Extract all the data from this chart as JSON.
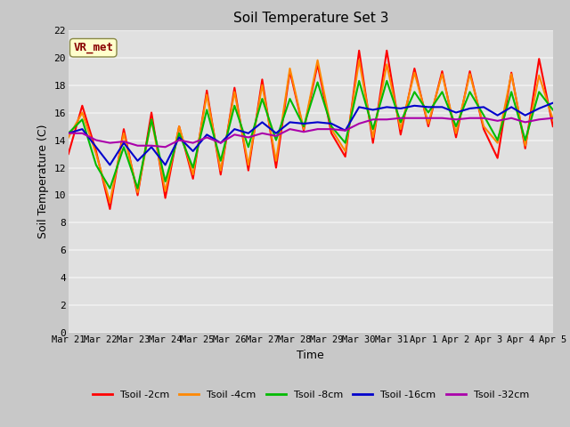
{
  "title": "Soil Temperature Set 3",
  "xlabel": "Time",
  "ylabel": "Soil Temperature (C)",
  "xlim": [
    0,
    15
  ],
  "ylim": [
    0,
    22
  ],
  "yticks": [
    0,
    2,
    4,
    6,
    8,
    10,
    12,
    14,
    16,
    18,
    20,
    22
  ],
  "xtick_labels": [
    "Mar 21",
    "Mar 22",
    "Mar 23",
    "Mar 24",
    "Mar 25",
    "Mar 26",
    "Mar 27",
    "Mar 28",
    "Mar 29",
    "Mar 30",
    "Mar 31",
    "Apr 1",
    "Apr 2",
    "Apr 3",
    "Apr 4",
    "Apr 5"
  ],
  "fig_bg_color": "#c8c8c8",
  "plot_bg_color": "#e0e0e0",
  "grid_color": "#f0f0f0",
  "annotation_text": "VR_met",
  "annotation_box_color": "#ffffcc",
  "annotation_text_color": "#880000",
  "series_names": [
    "Tsoil -2cm",
    "Tsoil -4cm",
    "Tsoil -8cm",
    "Tsoil -16cm",
    "Tsoil -32cm"
  ],
  "series_colors": [
    "#ff0000",
    "#ff8800",
    "#00bb00",
    "#0000cc",
    "#aa00aa"
  ],
  "series_lw": [
    1.5,
    1.5,
    1.5,
    1.5,
    1.5
  ],
  "t2cm": [
    13.0,
    16.5,
    13.2,
    9.0,
    14.8,
    10.0,
    16.0,
    9.8,
    15.0,
    11.2,
    17.6,
    11.5,
    17.8,
    11.8,
    18.4,
    12.0,
    19.0,
    14.7,
    19.5,
    14.5,
    12.8,
    20.5,
    13.8,
    20.5,
    14.4,
    19.2,
    15.0,
    19.0,
    14.2,
    19.0,
    14.8,
    12.7,
    18.9,
    13.4,
    19.9,
    15.0
  ],
  "t4cm": [
    14.2,
    16.0,
    13.0,
    9.5,
    14.5,
    10.2,
    15.5,
    10.3,
    15.0,
    11.5,
    17.3,
    11.8,
    17.5,
    12.2,
    18.0,
    12.5,
    19.2,
    14.8,
    19.8,
    14.8,
    13.2,
    19.8,
    14.2,
    19.5,
    14.8,
    18.9,
    15.2,
    18.8,
    14.5,
    18.8,
    15.0,
    13.8,
    18.8,
    13.6,
    18.7,
    15.5
  ],
  "t8cm": [
    14.5,
    15.5,
    12.2,
    10.5,
    13.5,
    10.5,
    15.5,
    11.0,
    14.5,
    12.0,
    16.2,
    12.5,
    16.5,
    13.5,
    17.0,
    14.0,
    17.0,
    15.0,
    18.2,
    15.0,
    13.8,
    18.3,
    14.8,
    18.3,
    15.3,
    17.5,
    16.0,
    17.5,
    15.0,
    17.5,
    15.8,
    14.0,
    17.5,
    14.0,
    17.5,
    16.2
  ],
  "t16cm": [
    14.5,
    14.8,
    13.5,
    12.2,
    13.8,
    12.5,
    13.5,
    12.2,
    14.2,
    13.2,
    14.4,
    13.8,
    14.8,
    14.5,
    15.3,
    14.5,
    15.3,
    15.2,
    15.3,
    15.2,
    14.7,
    16.4,
    16.2,
    16.4,
    16.3,
    16.5,
    16.4,
    16.4,
    16.0,
    16.3,
    16.4,
    15.8,
    16.4,
    15.8,
    16.3,
    16.7
  ],
  "t32cm": [
    14.5,
    14.5,
    14.0,
    13.8,
    13.9,
    13.6,
    13.6,
    13.5,
    14.0,
    13.8,
    14.2,
    13.8,
    14.4,
    14.2,
    14.5,
    14.3,
    14.8,
    14.6,
    14.8,
    14.8,
    14.7,
    15.2,
    15.5,
    15.5,
    15.6,
    15.6,
    15.6,
    15.6,
    15.5,
    15.6,
    15.6,
    15.4,
    15.6,
    15.3,
    15.5,
    15.6
  ]
}
